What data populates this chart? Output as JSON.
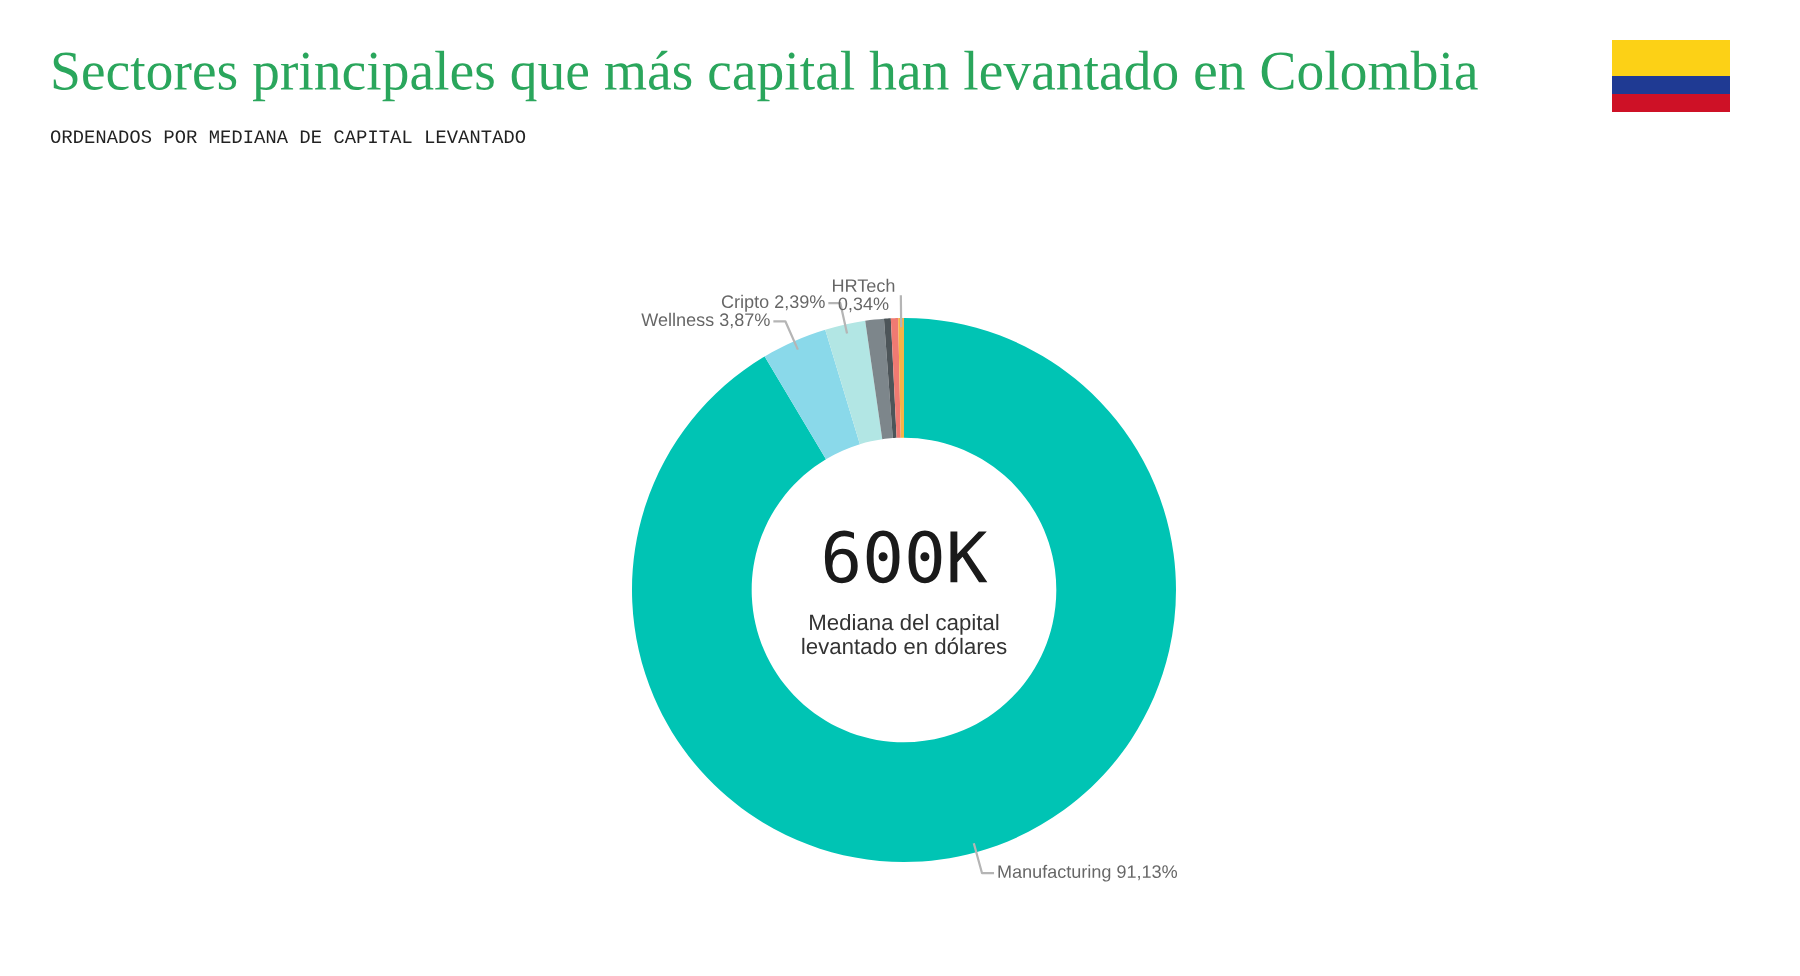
{
  "chart_data": {
    "type": "donut",
    "title": "Sectores principales que más capital han levantado en Colombia",
    "subtitle": "ORDENADOS POR MEDIANA DE CAPITAL LEVANTADO",
    "categories": [
      "Manufacturing",
      "Wellness",
      "Cripto",
      null,
      null,
      null,
      "HRTech"
    ],
    "values": [
      91.13,
      3.87,
      2.39,
      1.1,
      0.4,
      0.43,
      0.34
    ],
    "value_labels": [
      "91,13%",
      "3,87%",
      "2,39%",
      null,
      null,
      null,
      "0,34%"
    ],
    "colors": [
      "#00c4b4",
      "#8ad9ea",
      "#b2e6e4",
      "#7d868b",
      "#4d5559",
      "#f07a72",
      "#f5b347"
    ],
    "annotations": [
      "600K",
      "Mediana del capital\nlevantado en dólares"
    ]
  }
}
